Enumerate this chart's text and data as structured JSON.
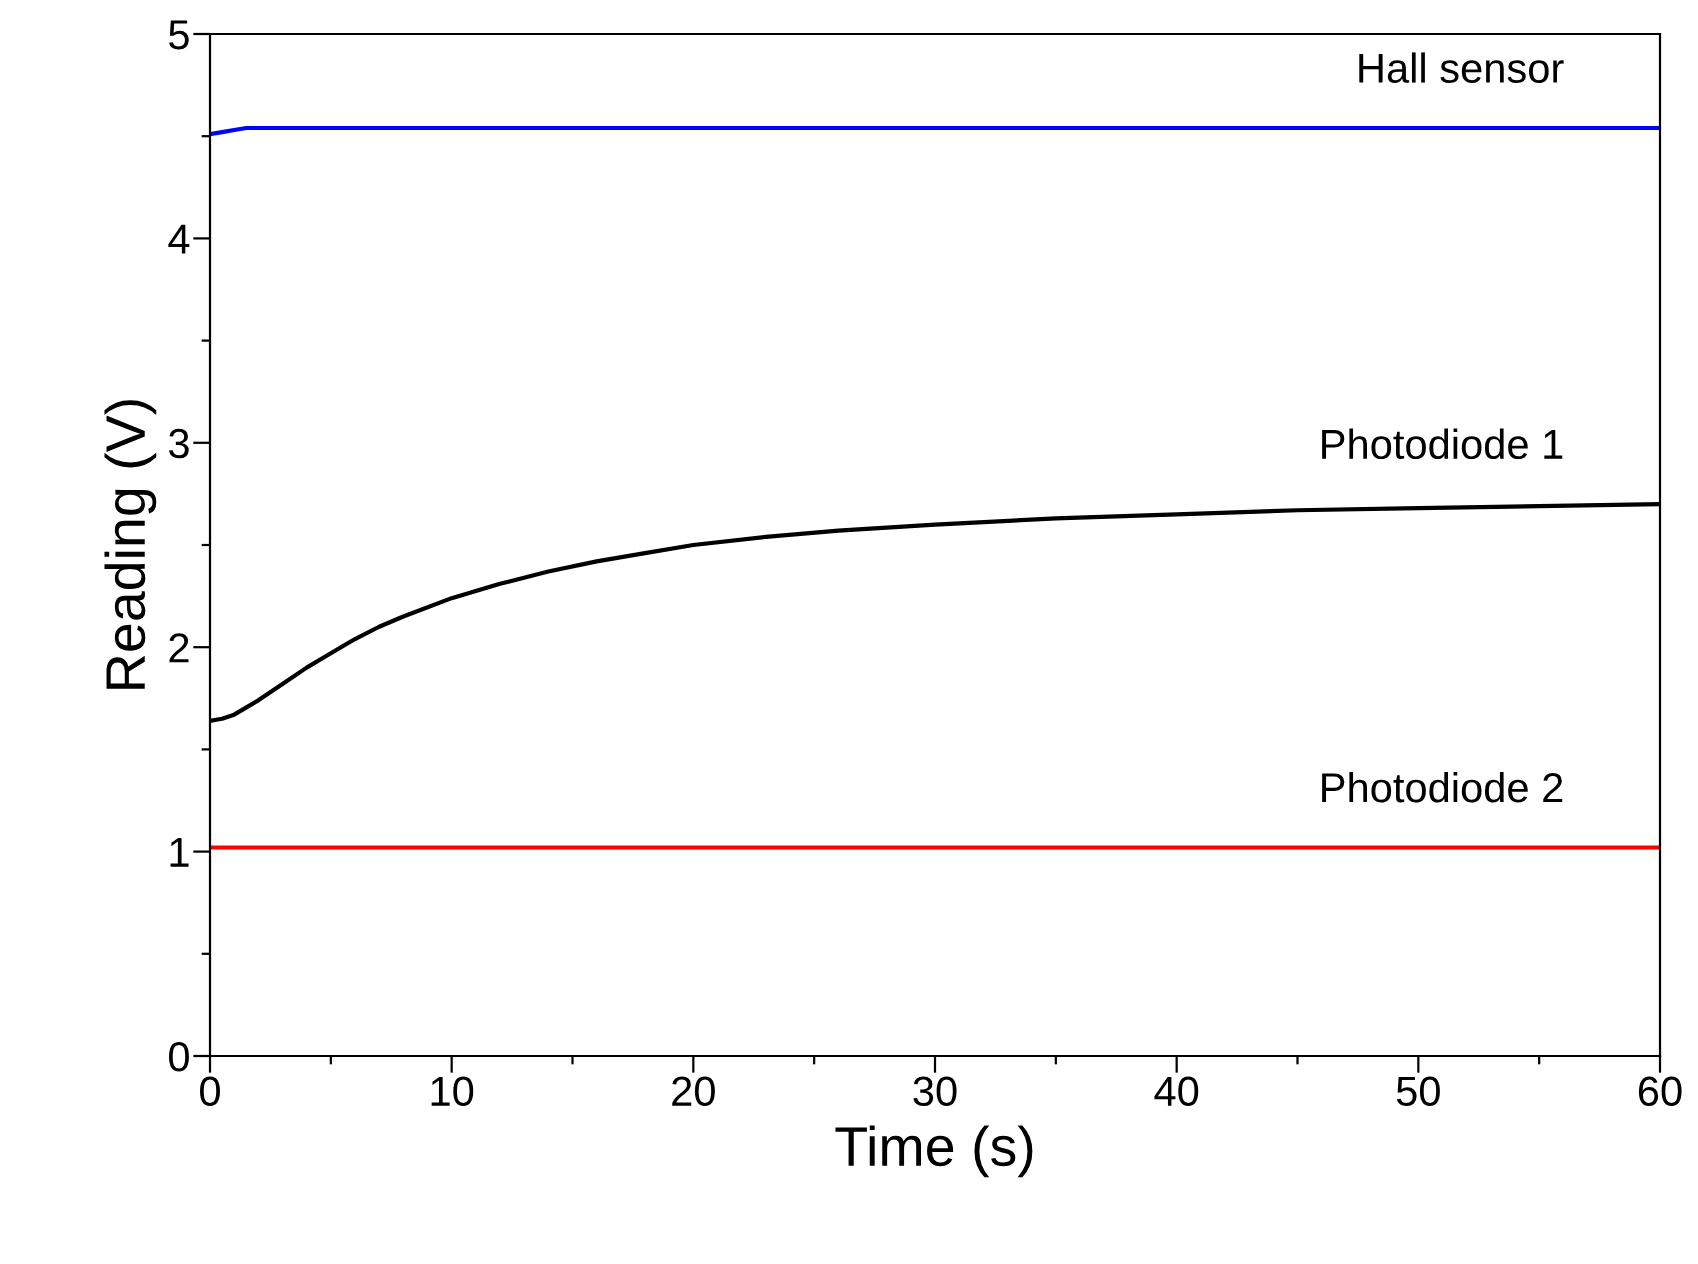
{
  "chart_data": {
    "type": "line",
    "xlabel": "Time (s)",
    "ylabel": "Reading (V)",
    "xlim": [
      0,
      60
    ],
    "ylim": [
      0,
      5
    ],
    "xticks": [
      0,
      {
        "value": 5,
        "label": null
      },
      10,
      {
        "value": 15,
        "label": null
      },
      20,
      {
        "value": 25,
        "label": null
      },
      30,
      {
        "value": 35,
        "label": null
      },
      40,
      {
        "value": 45,
        "label": null
      },
      50,
      {
        "value": 55,
        "label": null
      },
      60
    ],
    "yticks": [
      0,
      {
        "value": 0.5,
        "label": null
      },
      1,
      {
        "value": 1.5,
        "label": null
      },
      2,
      {
        "value": 2.5,
        "label": null
      },
      3,
      {
        "value": 3.5,
        "label": null
      },
      4,
      {
        "value": 4.5,
        "label": null
      },
      5
    ],
    "grid": false,
    "legend": false,
    "marker": "none",
    "line_style": "solid",
    "series": [
      {
        "name": "Hall sensor",
        "color": "#0000ff",
        "x": [
          0,
          0.5,
          1,
          1.5,
          2,
          60
        ],
        "values": [
          4.51,
          4.52,
          4.53,
          4.54,
          4.54,
          4.54
        ]
      },
      {
        "name": "Photodiode 1",
        "color": "#000000",
        "x": [
          0,
          0.5,
          1,
          2,
          3,
          4,
          5,
          6,
          7,
          8,
          10,
          12,
          14,
          16,
          18,
          20,
          23,
          26,
          30,
          35,
          40,
          45,
          50,
          55,
          60
        ],
        "values": [
          1.64,
          1.65,
          1.67,
          1.74,
          1.82,
          1.9,
          1.97,
          2.04,
          2.1,
          2.15,
          2.24,
          2.31,
          2.37,
          2.42,
          2.46,
          2.5,
          2.54,
          2.57,
          2.6,
          2.63,
          2.65,
          2.67,
          2.68,
          2.69,
          2.7
        ]
      },
      {
        "name": "Photodiode 2",
        "color": "#ff0000",
        "x": [
          0,
          60
        ],
        "values": [
          1.02,
          1.02
        ]
      }
    ]
  }
}
